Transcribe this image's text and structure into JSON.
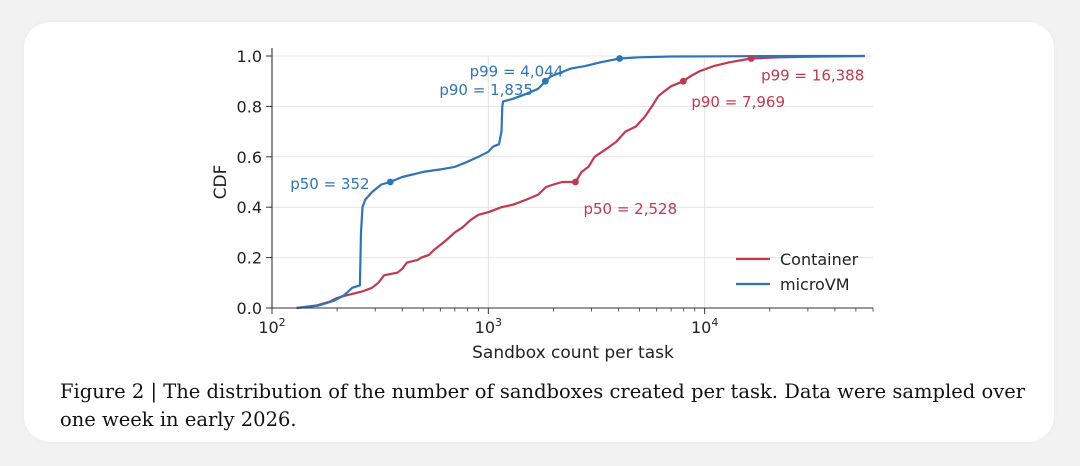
{
  "caption": "Figure 2 | The distribution of the number of sandboxes created per task. Data were sampled over one week in early 2026.",
  "chart_data": {
    "type": "line",
    "title": "",
    "xlabel": "Sandbox count per task",
    "ylabel": "CDF",
    "x_scale": "log",
    "xlim": [
      100,
      60000
    ],
    "ylim": [
      0,
      1.0
    ],
    "x_ticks": [
      {
        "value": 100,
        "base": "10",
        "exp": "2"
      },
      {
        "value": 1000,
        "base": "10",
        "exp": "3"
      },
      {
        "value": 10000,
        "base": "10",
        "exp": "4"
      }
    ],
    "y_ticks": [
      {
        "value": 0.0,
        "label": "0.0"
      },
      {
        "value": 0.2,
        "label": "0.2"
      },
      {
        "value": 0.4,
        "label": "0.4"
      },
      {
        "value": 0.6,
        "label": "0.6"
      },
      {
        "value": 0.8,
        "label": "0.8"
      },
      {
        "value": 1.0,
        "label": "1.0"
      }
    ],
    "grid": true,
    "legend_position": "lower-right",
    "series": [
      {
        "name": "Container",
        "color": "#c0394f",
        "points": [
          [
            130,
            0
          ],
          [
            160,
            0.01
          ],
          [
            185,
            0.025
          ],
          [
            200,
            0.04
          ],
          [
            220,
            0.05
          ],
          [
            260,
            0.065
          ],
          [
            290,
            0.08
          ],
          [
            310,
            0.1
          ],
          [
            330,
            0.13
          ],
          [
            380,
            0.14
          ],
          [
            400,
            0.155
          ],
          [
            420,
            0.18
          ],
          [
            440,
            0.185
          ],
          [
            470,
            0.19
          ],
          [
            490,
            0.2
          ],
          [
            530,
            0.21
          ],
          [
            560,
            0.23
          ],
          [
            600,
            0.25
          ],
          [
            640,
            0.27
          ],
          [
            700,
            0.3
          ],
          [
            760,
            0.32
          ],
          [
            830,
            0.35
          ],
          [
            900,
            0.37
          ],
          [
            1000,
            0.38
          ],
          [
            1150,
            0.4
          ],
          [
            1300,
            0.41
          ],
          [
            1500,
            0.43
          ],
          [
            1700,
            0.45
          ],
          [
            1850,
            0.48
          ],
          [
            2000,
            0.49
          ],
          [
            2200,
            0.5
          ],
          [
            2528,
            0.5
          ],
          [
            2700,
            0.54
          ],
          [
            2900,
            0.56
          ],
          [
            3100,
            0.6
          ],
          [
            3500,
            0.63
          ],
          [
            3900,
            0.66
          ],
          [
            4300,
            0.7
          ],
          [
            4800,
            0.72
          ],
          [
            5300,
            0.76
          ],
          [
            5700,
            0.8
          ],
          [
            6100,
            0.84
          ],
          [
            6500,
            0.86
          ],
          [
            7000,
            0.88
          ],
          [
            7969,
            0.9
          ],
          [
            8600,
            0.92
          ],
          [
            9500,
            0.94
          ],
          [
            11000,
            0.96
          ],
          [
            13000,
            0.975
          ],
          [
            16388,
            0.99
          ],
          [
            22000,
            0.995
          ],
          [
            35000,
            0.998
          ],
          [
            55000,
            1.0
          ]
        ]
      },
      {
        "name": "microVM",
        "color": "#2e74b8",
        "points": [
          [
            130,
            0
          ],
          [
            165,
            0.01
          ],
          [
            195,
            0.03
          ],
          [
            215,
            0.05
          ],
          [
            235,
            0.08
          ],
          [
            255,
            0.09
          ],
          [
            258,
            0.3
          ],
          [
            262,
            0.4
          ],
          [
            270,
            0.43
          ],
          [
            290,
            0.46
          ],
          [
            320,
            0.49
          ],
          [
            352,
            0.5
          ],
          [
            400,
            0.52
          ],
          [
            500,
            0.54
          ],
          [
            600,
            0.55
          ],
          [
            700,
            0.56
          ],
          [
            800,
            0.58
          ],
          [
            900,
            0.6
          ],
          [
            1000,
            0.62
          ],
          [
            1050,
            0.64
          ],
          [
            1120,
            0.65
          ],
          [
            1150,
            0.7
          ],
          [
            1160,
            0.8
          ],
          [
            1170,
            0.82
          ],
          [
            1300,
            0.83
          ],
          [
            1500,
            0.85
          ],
          [
            1700,
            0.87
          ],
          [
            1835,
            0.9
          ],
          [
            1950,
            0.92
          ],
          [
            2100,
            0.93
          ],
          [
            2400,
            0.95
          ],
          [
            2800,
            0.96
          ],
          [
            3300,
            0.975
          ],
          [
            4044,
            0.99
          ],
          [
            5000,
            0.995
          ],
          [
            7000,
            0.998
          ],
          [
            12000,
            0.999
          ],
          [
            30000,
            1.0
          ],
          [
            55000,
            1.0
          ]
        ]
      }
    ],
    "annotations": [
      {
        "text": "p50 = 352",
        "series": "microVM",
        "x": 352,
        "y": 0.5,
        "dot": true
      },
      {
        "text": "p90 = 1,835",
        "series": "microVM",
        "x": 1835,
        "y": 0.9,
        "dot": true
      },
      {
        "text": "p99 = 4,044",
        "series": "microVM",
        "x": 4044,
        "y": 0.99,
        "dot": true
      },
      {
        "text": "p50 = 2,528",
        "series": "Container",
        "x": 2528,
        "y": 0.5,
        "dot": true
      },
      {
        "text": "p90 = 7,969",
        "series": "Container",
        "x": 7969,
        "y": 0.9,
        "dot": true
      },
      {
        "text": "p99 = 16,388",
        "series": "Container",
        "x": 16388,
        "y": 0.99,
        "dot": true
      }
    ]
  }
}
